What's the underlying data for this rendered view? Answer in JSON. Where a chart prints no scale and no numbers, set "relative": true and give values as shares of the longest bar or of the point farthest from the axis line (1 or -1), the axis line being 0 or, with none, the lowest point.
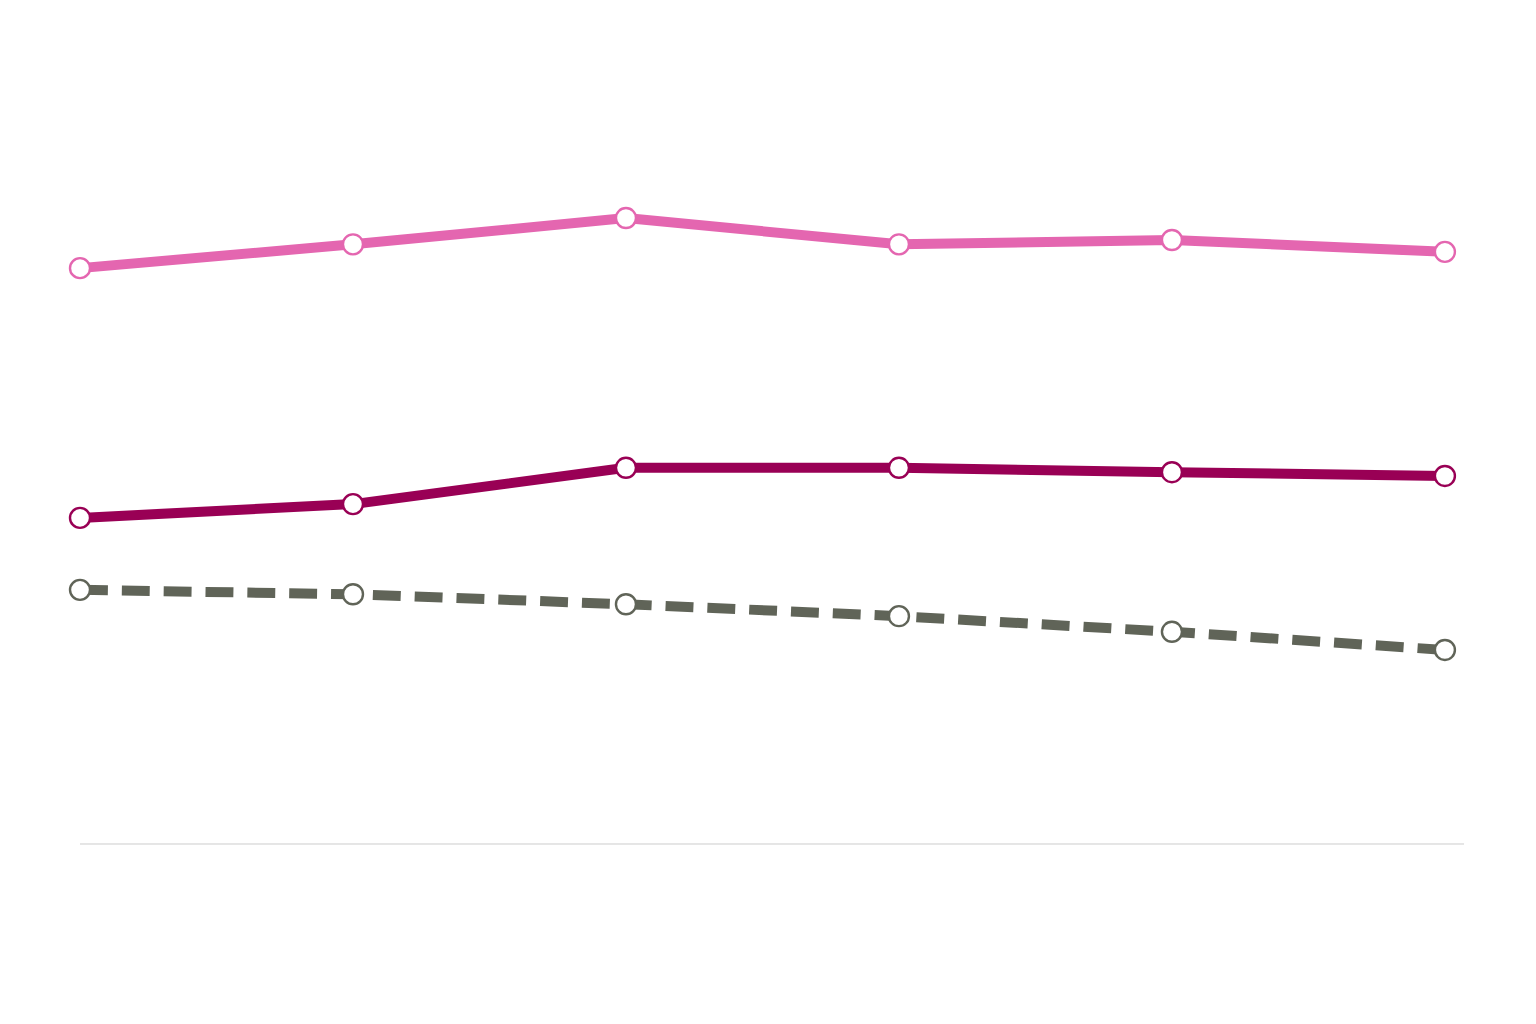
{
  "chart_data": {
    "type": "line",
    "relative": true,
    "marker": "circle",
    "categories": [
      null,
      null,
      null,
      null,
      null,
      null
    ],
    "series": [
      {
        "color": "#e466b0",
        "line_style": "solid",
        "values": [
          0.92,
          0.958,
          1,
          0.958,
          0.965,
          0.946
        ]
      },
      {
        "color": "#990055",
        "line_style": "solid",
        "values": [
          0.521,
          0.543,
          0.601,
          0.601,
          0.594,
          0.588
        ]
      },
      {
        "color": "#606458",
        "line_style": "dashed",
        "values": [
          0.406,
          0.399,
          0.383,
          0.364,
          0.339,
          0.31
        ]
      }
    ]
  }
}
